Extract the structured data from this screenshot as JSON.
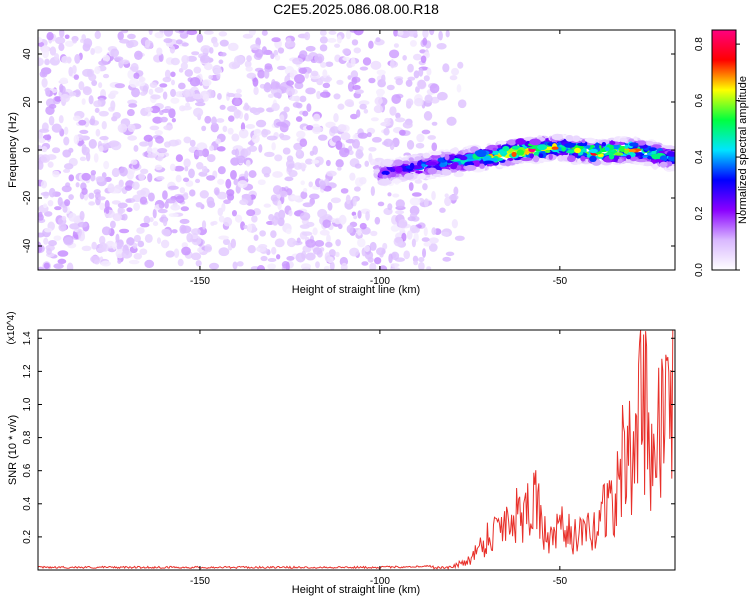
{
  "title": "C2E5.2025.086.08.00.R18",
  "chart_data": [
    {
      "type": "heatmap",
      "xlabel": "Height of straight line (km)",
      "ylabel": "Frequency (Hz)",
      "xlim": [
        -195,
        -18
      ],
      "ylim": [
        -50,
        50
      ],
      "xticks": [
        -150,
        -100,
        -50
      ],
      "yticks": [
        -40,
        -20,
        0,
        20,
        40
      ],
      "colorbar": {
        "label": "Normalized spectral amplitude",
        "range": [
          0,
          0.85
        ],
        "ticks": [
          0.0,
          0.2,
          0.4,
          0.6,
          0.8
        ],
        "colors": [
          "#ffffff",
          "#d9b8ff",
          "#8a00ff",
          "#0000ff",
          "#00e5ff",
          "#00ff40",
          "#ffff00",
          "#ff0000",
          "#ff0080"
        ]
      },
      "signal_band": {
        "x": [
          -100,
          -90,
          -80,
          -70,
          -60,
          -50,
          -40,
          -30,
          -20,
          -18
        ],
        "center_freq": [
          -10,
          -7,
          -5,
          -3,
          0,
          1,
          -1,
          0,
          -3,
          -3
        ],
        "peak_amplitude": [
          0.25,
          0.35,
          0.45,
          0.6,
          0.8,
          0.6,
          0.75,
          0.7,
          0.45,
          0.4
        ]
      },
      "noise_region": {
        "x_range": [
          -195,
          -85
        ],
        "typical_amplitude": 0.1
      }
    },
    {
      "type": "line",
      "xlabel": "Height of straight line (km)",
      "ylabel": "SNR (10 * v/v)",
      "y_multiplier": "(x10^4)",
      "xlim": [
        -195,
        -18
      ],
      "ylim": [
        0,
        1.45
      ],
      "xticks": [
        -150,
        -100,
        -50
      ],
      "yticks": [
        0.2,
        0.4,
        0.6,
        0.8,
        1.0,
        1.2,
        1.4
      ],
      "series": [
        {
          "color": "#e8302a",
          "x": [
            -195,
            -150,
            -100,
            -90,
            -80,
            -75,
            -70,
            -65,
            -60,
            -57,
            -55,
            -52,
            -50,
            -45,
            -40,
            -37,
            -35,
            -32,
            -30,
            -27,
            -25,
            -22,
            -20,
            -18
          ],
          "y": [
            0.01,
            0.01,
            0.01,
            0.015,
            0.02,
            0.08,
            0.25,
            0.38,
            0.45,
            0.6,
            0.3,
            0.2,
            0.32,
            0.25,
            0.3,
            0.55,
            0.45,
            0.9,
            0.8,
            1.42,
            0.9,
            1.1,
            1.3,
            1.42
          ]
        }
      ]
    }
  ]
}
